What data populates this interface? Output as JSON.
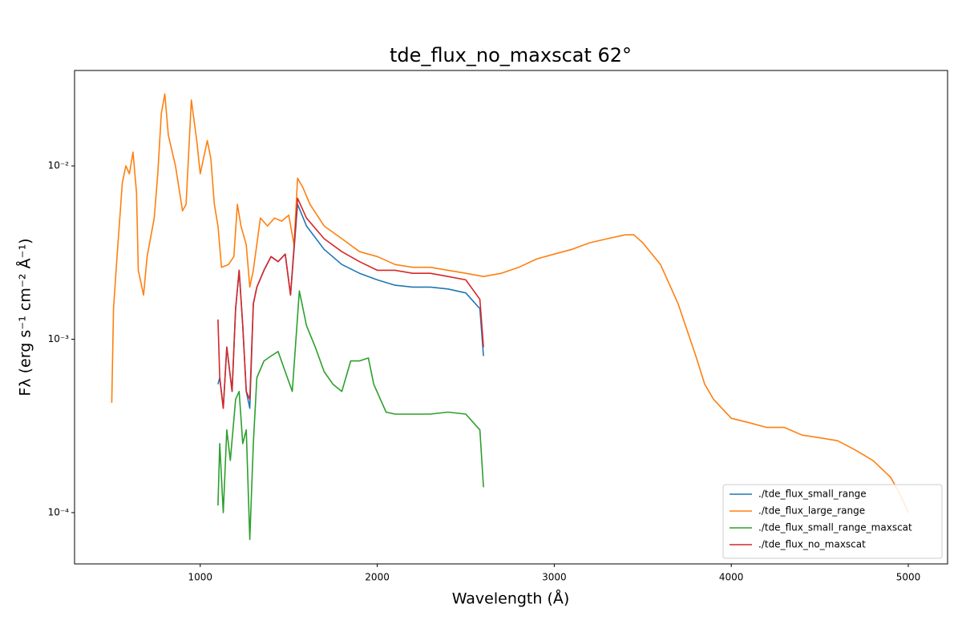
{
  "chart_data": {
    "type": "line",
    "title": "tde_flux_no_maxscat 62°",
    "x_label": "Wavelength (Å)",
    "y_label": "Fλ (erg s⁻¹ cm⁻² Å⁻¹)",
    "yscale": "log",
    "legend": "lower right",
    "xlim": [
      290,
      5222
    ],
    "ylim": [
      5.06e-05,
      0.0355
    ],
    "xticks": [
      1000,
      2000,
      3000,
      4000,
      5000
    ],
    "yticks": [
      {
        "value": 0.0001,
        "label": "10⁻⁴"
      },
      {
        "value": 0.001,
        "label": "10⁻³"
      },
      {
        "value": 0.01,
        "label": "10⁻²"
      }
    ],
    "series": [
      {
        "name": "./tde_flux_small_range",
        "color": "#1f77b4",
        "x": [
          1100,
          1110,
          1130,
          1150,
          1180,
          1200,
          1220,
          1240,
          1260,
          1280,
          1300,
          1320,
          1360,
          1400,
          1440,
          1480,
          1510,
          1550,
          1600,
          1700,
          1800,
          1900,
          2000,
          2100,
          2200,
          2300,
          2400,
          2500,
          2580,
          2600
        ],
        "values": [
          0.00055,
          0.0006,
          0.0004,
          0.0009,
          0.0005,
          0.0015,
          0.0025,
          0.0012,
          0.0005,
          0.0004,
          0.0016,
          0.002,
          0.0025,
          0.003,
          0.0028,
          0.0031,
          0.0018,
          0.006,
          0.0045,
          0.0033,
          0.0027,
          0.0024,
          0.0022,
          0.00205,
          0.002,
          0.002,
          0.00195,
          0.00185,
          0.0015,
          0.0008
        ]
      },
      {
        "name": "./tde_flux_large_range",
        "color": "#ff7f0e",
        "x": [
          500,
          510,
          530,
          560,
          580,
          600,
          620,
          640,
          650,
          680,
          700,
          740,
          760,
          780,
          800,
          820,
          860,
          900,
          920,
          950,
          980,
          1000,
          1040,
          1060,
          1080,
          1100,
          1120,
          1160,
          1190,
          1210,
          1230,
          1260,
          1280,
          1300,
          1340,
          1380,
          1420,
          1460,
          1500,
          1530,
          1550,
          1580,
          1620,
          1700,
          1800,
          1900,
          2000,
          2100,
          2200,
          2300,
          2400,
          2500,
          2600,
          2700,
          2800,
          2900,
          3000,
          3100,
          3200,
          3300,
          3400,
          3450,
          3500,
          3600,
          3700,
          3800,
          3850,
          3900,
          4000,
          4100,
          4200,
          4300,
          4400,
          4500,
          4600,
          4700,
          4800,
          4900,
          4950,
          5000
        ],
        "values": [
          0.00043,
          0.0015,
          0.003,
          0.008,
          0.01,
          0.009,
          0.012,
          0.007,
          0.0025,
          0.0018,
          0.003,
          0.005,
          0.009,
          0.02,
          0.026,
          0.015,
          0.01,
          0.0055,
          0.006,
          0.024,
          0.014,
          0.009,
          0.014,
          0.011,
          0.006,
          0.0045,
          0.0026,
          0.0027,
          0.003,
          0.006,
          0.0045,
          0.0035,
          0.002,
          0.0025,
          0.005,
          0.0045,
          0.005,
          0.0048,
          0.0052,
          0.0035,
          0.0085,
          0.0075,
          0.006,
          0.0045,
          0.0038,
          0.0032,
          0.003,
          0.0027,
          0.0026,
          0.0026,
          0.0025,
          0.0024,
          0.0023,
          0.0024,
          0.0026,
          0.0029,
          0.0031,
          0.0033,
          0.0036,
          0.0038,
          0.004,
          0.004,
          0.0036,
          0.0027,
          0.0016,
          0.0008,
          0.00055,
          0.00045,
          0.00035,
          0.00033,
          0.00031,
          0.00031,
          0.00028,
          0.00027,
          0.00026,
          0.00023,
          0.0002,
          0.00016,
          0.00013,
          0.0001
        ]
      },
      {
        "name": "./tde_flux_small_range_maxscat",
        "color": "#2ca02c",
        "x": [
          1100,
          1110,
          1130,
          1150,
          1170,
          1200,
          1220,
          1240,
          1260,
          1280,
          1300,
          1320,
          1360,
          1400,
          1440,
          1480,
          1520,
          1560,
          1600,
          1650,
          1700,
          1750,
          1800,
          1850,
          1900,
          1950,
          1980,
          2050,
          2100,
          2200,
          2300,
          2400,
          2500,
          2580,
          2600
        ],
        "values": [
          0.00011,
          0.00025,
          0.0001,
          0.0003,
          0.0002,
          0.00045,
          0.0005,
          0.00025,
          0.0003,
          7e-05,
          0.00025,
          0.0006,
          0.00075,
          0.0008,
          0.00085,
          0.00065,
          0.0005,
          0.0019,
          0.0012,
          0.0009,
          0.00065,
          0.00055,
          0.0005,
          0.00075,
          0.00075,
          0.00078,
          0.00055,
          0.00038,
          0.00037,
          0.00037,
          0.00037,
          0.00038,
          0.00037,
          0.0003,
          0.00014
        ]
      },
      {
        "name": "./tde_flux_no_maxscat",
        "color": "#d62728",
        "x": [
          1100,
          1110,
          1130,
          1150,
          1180,
          1200,
          1220,
          1240,
          1260,
          1280,
          1300,
          1320,
          1360,
          1400,
          1440,
          1480,
          1510,
          1550,
          1600,
          1700,
          1800,
          1900,
          2000,
          2100,
          2200,
          2300,
          2400,
          2500,
          2580,
          2600
        ],
        "values": [
          0.0013,
          0.0006,
          0.0004,
          0.0009,
          0.0005,
          0.0015,
          0.0025,
          0.0012,
          0.0005,
          0.00045,
          0.0016,
          0.002,
          0.0025,
          0.003,
          0.0028,
          0.0031,
          0.0018,
          0.0065,
          0.005,
          0.0038,
          0.0032,
          0.0028,
          0.0025,
          0.0025,
          0.0024,
          0.0024,
          0.0023,
          0.0022,
          0.0017,
          0.0009
        ]
      }
    ]
  }
}
